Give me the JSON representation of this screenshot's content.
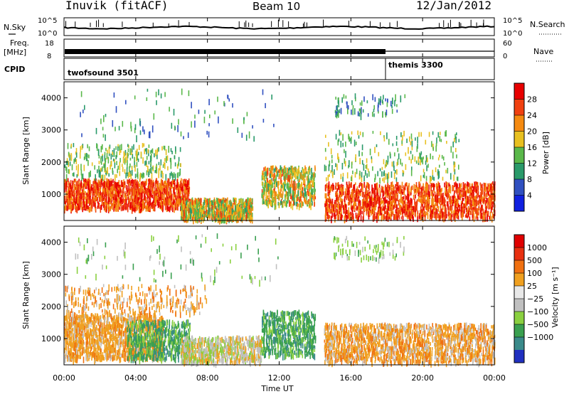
{
  "header": {
    "station": "Inuvik (fitACF)",
    "beam": "Beam 10",
    "date": "12/Jan/2012"
  },
  "side_labels": {
    "nsky": "N.Sky",
    "freq_line1": "Freq.",
    "freq_line2": "[MHz]",
    "cpid": "CPID",
    "nsearch": "N.Search",
    "nave": "Nave"
  },
  "noise_panel": {
    "left_ticks": [
      "10^5",
      "10^0"
    ],
    "right_ticks": [
      "10^5",
      "10^0"
    ]
  },
  "freq_panel": {
    "left_ticks": [
      "18",
      "8"
    ],
    "right_ticks": [
      "60",
      "0"
    ]
  },
  "cpid_panel": {
    "segments": [
      {
        "name": "twofsound 3501",
        "start_hour": 0,
        "end_hour": 18.0
      },
      {
        "name": "themis 3300",
        "start_hour": 18.0,
        "end_hour": 24
      }
    ]
  },
  "chart_data": [
    {
      "type": "heatmap",
      "title": "",
      "ylabel": "Slant Range [km]",
      "xlabel": "",
      "xlim_hours": [
        0,
        24
      ],
      "ylim": [
        180,
        4500
      ],
      "yticks": [
        1000,
        2000,
        3000,
        4000
      ],
      "colorbar": {
        "label": "Power [dB]",
        "ticks": [
          "4",
          "8",
          "12",
          "16",
          "20",
          "24",
          "28"
        ],
        "colors": [
          "#1020e0",
          "#3050c0",
          "#2a9a6a",
          "#5ab84a",
          "#e8c020",
          "#f58a10",
          "#f04010",
          "#e80000"
        ]
      }
    },
    {
      "type": "heatmap",
      "title": "",
      "ylabel": "Slant Range [km]",
      "xlabel": "Time UT",
      "xlim_hours": [
        0,
        24
      ],
      "ylim": [
        180,
        4500
      ],
      "yticks": [
        1000,
        2000,
        3000,
        4000
      ],
      "xticks": [
        "00:00",
        "04:00",
        "08:00",
        "12:00",
        "16:00",
        "20:00",
        "00:00"
      ],
      "colorbar": {
        "label": "Velocity [m s⁻¹]",
        "ticks": [
          "1000",
          "500",
          "100",
          "25",
          "−25",
          "−100",
          "−500",
          "−1000"
        ],
        "colors": [
          "#2030c0",
          "#3a8a8a",
          "#3aa050",
          "#8ad040",
          "#c0c0c0",
          "#e8e8e8",
          "#f0a020",
          "#f07010",
          "#e83010",
          "#e00000"
        ]
      }
    }
  ],
  "colors": {
    "power_ramp": [
      "#1020e0",
      "#3050c0",
      "#2a9a6a",
      "#5ab84a",
      "#e8c020",
      "#f58a10",
      "#f04010",
      "#e80000"
    ],
    "velocity_ramp": [
      "#2030c0",
      "#3a8a8a",
      "#3aa050",
      "#8ad040",
      "#c0c0c0",
      "#f0a020",
      "#f07010",
      "#e83010"
    ]
  }
}
